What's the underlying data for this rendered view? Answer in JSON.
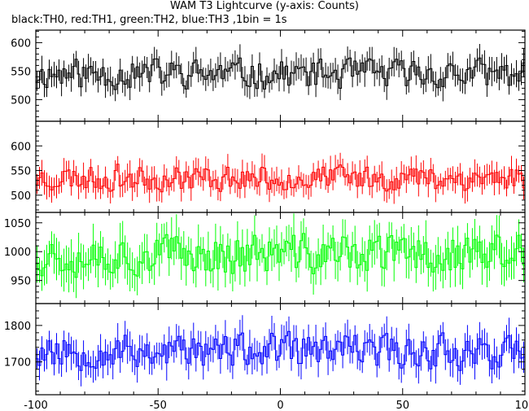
{
  "title": "WAM T3 Lightcurve (y-axis: Counts)",
  "subtitle": "black:TH0, red:TH1, green:TH2, blue:TH3 ,1bin = 1s",
  "chart_data": [
    {
      "type": "line",
      "series": [
        {
          "name": "TH0",
          "color": "#000000",
          "base": 545,
          "amplitude": 22,
          "error": 20,
          "seed": 11
        }
      ],
      "x_range": [
        -100,
        100
      ],
      "ylim": [
        462,
        622
      ],
      "yticks": [
        500,
        550,
        600
      ],
      "xlabel": "",
      "ylabel": ""
    },
    {
      "type": "line",
      "series": [
        {
          "name": "TH1",
          "color": "#ff0000",
          "base": 535,
          "amplitude": 22,
          "error": 22,
          "seed": 23
        }
      ],
      "x_range": [
        -100,
        100
      ],
      "ylim": [
        465,
        650
      ],
      "yticks": [
        500,
        550,
        600
      ],
      "xlabel": "",
      "ylabel": ""
    },
    {
      "type": "line",
      "series": [
        {
          "name": "TH2",
          "color": "#00ff00",
          "base": 995,
          "amplitude": 30,
          "error": 30,
          "seed": 37
        }
      ],
      "x_range": [
        -100,
        100
      ],
      "ylim": [
        910,
        1068
      ],
      "yticks": [
        950,
        1000,
        1050
      ],
      "xlabel": "",
      "ylabel": ""
    },
    {
      "type": "line",
      "series": [
        {
          "name": "TH3",
          "color": "#0000ff",
          "base": 1730,
          "amplitude": 40,
          "error": 38,
          "seed": 53
        }
      ],
      "x_range": [
        -100,
        100
      ],
      "ylim": [
        1610,
        1860
      ],
      "yticks": [
        1700,
        1800
      ],
      "xticks": [
        -100,
        -50,
        0,
        50,
        100
      ],
      "xlabel": "",
      "ylabel": ""
    }
  ]
}
